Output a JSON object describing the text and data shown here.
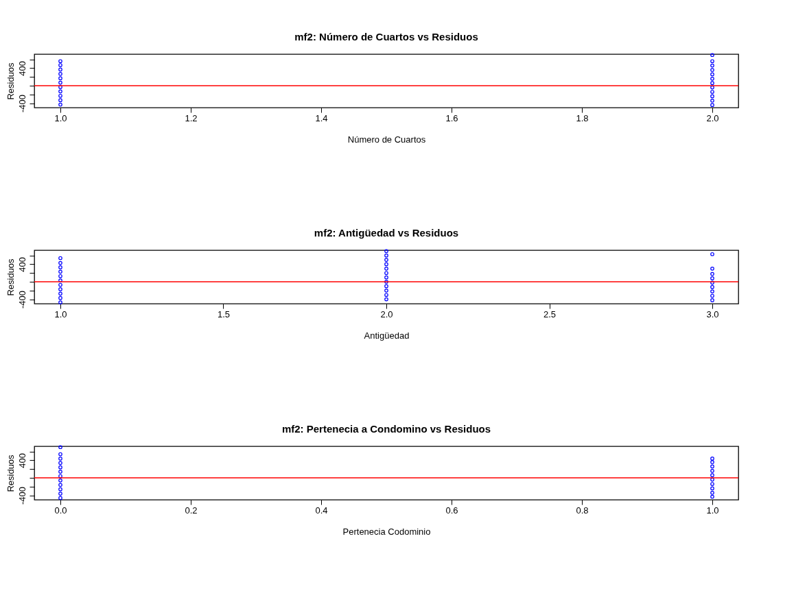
{
  "chart_data": [
    {
      "type": "scatter",
      "title": "mf2: Número de Cuartos vs Residuos",
      "xlabel": "Número de Cuartos",
      "ylabel": "Residuos",
      "marker": "circle",
      "grid": false,
      "legend": false,
      "xlim": [
        0.96,
        2.04
      ],
      "xticks": [
        {
          "value": 1,
          "label": "1.0"
        },
        {
          "value": 1.2,
          "label": "1.2"
        },
        {
          "value": 1.4,
          "label": "1.4"
        },
        {
          "value": 1.6,
          "label": "1.6"
        },
        {
          "value": 1.8,
          "label": "1.8"
        },
        {
          "value": 2,
          "label": "2.0"
        }
      ],
      "ylim": [
        -500,
        720
      ],
      "yticks": [
        {
          "value": -400,
          "label": "-400"
        },
        {
          "value": -200,
          "label": null
        },
        {
          "value": 0,
          "label": null
        },
        {
          "value": 200,
          "label": null
        },
        {
          "value": 400,
          "label": "400"
        },
        {
          "value": 600,
          "label": null
        }
      ],
      "ref_lines": [
        {
          "axis": "y",
          "value": 0,
          "color": "#ff0000"
        }
      ],
      "series": [
        {
          "color": "#0000ff",
          "x": [
            1,
            1,
            1,
            1,
            1,
            1,
            1,
            1,
            1,
            1,
            1
          ],
          "values": [
            -430,
            -330,
            -230,
            -130,
            -30,
            70,
            170,
            270,
            370,
            470,
            560
          ]
        },
        {
          "color": "#0000ff",
          "x": [
            2,
            2,
            2,
            2,
            2,
            2,
            2,
            2,
            2,
            2,
            2,
            2
          ],
          "values": [
            -440,
            -340,
            -240,
            -140,
            -40,
            60,
            160,
            260,
            360,
            460,
            560,
            700
          ]
        }
      ]
    },
    {
      "type": "scatter",
      "title": "mf2: Antigüedad vs Residuos",
      "xlabel": "Antigüedad",
      "ylabel": "Residuos",
      "marker": "circle",
      "grid": false,
      "legend": false,
      "xlim": [
        0.92,
        3.08
      ],
      "xticks": [
        {
          "value": 1,
          "label": "1.0"
        },
        {
          "value": 1.5,
          "label": "1.5"
        },
        {
          "value": 2,
          "label": "2.0"
        },
        {
          "value": 2.5,
          "label": "2.5"
        },
        {
          "value": 3,
          "label": "3.0"
        }
      ],
      "ylim": [
        -500,
        720
      ],
      "yticks": [
        {
          "value": -400,
          "label": "-400"
        },
        {
          "value": -200,
          "label": null
        },
        {
          "value": 0,
          "label": null
        },
        {
          "value": 200,
          "label": null
        },
        {
          "value": 400,
          "label": "400"
        },
        {
          "value": 600,
          "label": null
        }
      ],
      "ref_lines": [
        {
          "axis": "y",
          "value": 0,
          "color": "#ff0000"
        }
      ],
      "series": [
        {
          "color": "#0000ff",
          "x": [
            1,
            1,
            1,
            1,
            1,
            1,
            1,
            1,
            1,
            1,
            1
          ],
          "values": [
            -470,
            -370,
            -270,
            -170,
            -70,
            30,
            130,
            230,
            330,
            430,
            540
          ]
        },
        {
          "color": "#0000ff",
          "x": [
            2,
            2,
            2,
            2,
            2,
            2,
            2,
            2,
            2,
            2,
            2,
            2
          ],
          "values": [
            -400,
            -300,
            -200,
            -100,
            0,
            100,
            200,
            300,
            400,
            500,
            600,
            700
          ]
        },
        {
          "color": "#0000ff",
          "x": [
            3,
            3,
            3,
            3,
            3,
            3,
            3,
            3,
            3
          ],
          "values": [
            -420,
            -320,
            -220,
            -120,
            -20,
            80,
            180,
            300,
            630
          ]
        }
      ]
    },
    {
      "type": "scatter",
      "title": "mf2: Pertenecia a Condomino vs Residuos",
      "xlabel": "Pertenecia Codominio",
      "ylabel": "Residuos",
      "marker": "circle",
      "grid": false,
      "legend": false,
      "xlim": [
        -0.04,
        1.04
      ],
      "xticks": [
        {
          "value": 0,
          "label": "0.0"
        },
        {
          "value": 0.2,
          "label": "0.2"
        },
        {
          "value": 0.4,
          "label": "0.4"
        },
        {
          "value": 0.6,
          "label": "0.6"
        },
        {
          "value": 0.8,
          "label": "0.8"
        },
        {
          "value": 1,
          "label": "1.0"
        }
      ],
      "ylim": [
        -500,
        720
      ],
      "yticks": [
        {
          "value": -400,
          "label": "-400"
        },
        {
          "value": -200,
          "label": null
        },
        {
          "value": 0,
          "label": null
        },
        {
          "value": 200,
          "label": null
        },
        {
          "value": 400,
          "label": "400"
        },
        {
          "value": 600,
          "label": null
        }
      ],
      "ref_lines": [
        {
          "axis": "y",
          "value": 0,
          "color": "#ff0000"
        }
      ],
      "series": [
        {
          "color": "#0000ff",
          "x": [
            0,
            0,
            0,
            0,
            0,
            0,
            0,
            0,
            0,
            0,
            0,
            0
          ],
          "values": [
            -460,
            -360,
            -260,
            -160,
            -60,
            40,
            140,
            240,
            340,
            440,
            540,
            700
          ]
        },
        {
          "color": "#0000ff",
          "x": [
            1,
            1,
            1,
            1,
            1,
            1,
            1,
            1,
            1,
            1
          ],
          "values": [
            -430,
            -340,
            -240,
            -140,
            -40,
            60,
            160,
            260,
            360,
            440
          ]
        }
      ]
    }
  ]
}
